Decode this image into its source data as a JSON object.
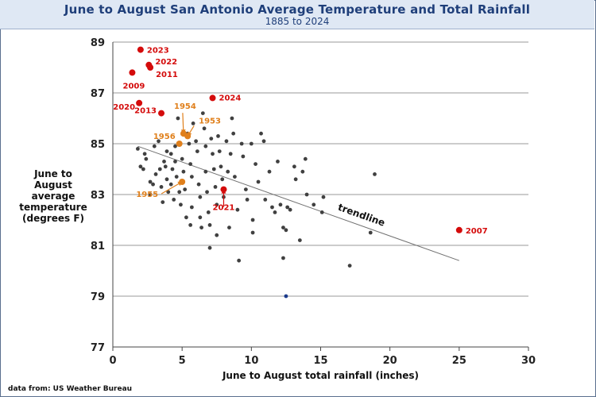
{
  "chart_data": {
    "type": "scatter",
    "title": "June to August San Antonio Average Temperature and Total Rainfall",
    "subtitle": "1885 to 2024",
    "xlabel": "June to August total rainfall (inches)",
    "ylabel": "June to August average temperature (degrees F)",
    "source": "data from:  US Weather Bureau",
    "xlim": [
      0,
      30
    ],
    "ylim": [
      77,
      89
    ],
    "xticks": [
      "0",
      "5",
      "10",
      "15",
      "20",
      "25",
      "30"
    ],
    "yticks": [
      "77",
      "79",
      "81",
      "83",
      "85",
      "87",
      "89"
    ],
    "grid": "horizontal",
    "colors": {
      "points": "#404040",
      "highlight_red": "#d40b0b",
      "highlight_orange": "#e0801c",
      "trendline": "#707070",
      "frame": "#5a6f8e",
      "header_bg": "#dfe8f4",
      "title": "#1f3f7a",
      "special": "#1b3a8c"
    },
    "trendline": {
      "label": "trendline",
      "x": [
        1.8,
        25.0
      ],
      "y": [
        84.9,
        80.4
      ]
    },
    "points": [
      [
        1.8,
        84.8
      ],
      [
        2.0,
        84.1
      ],
      [
        2.3,
        84.6
      ],
      [
        2.4,
        84.4
      ],
      [
        2.2,
        84.0
      ],
      [
        2.7,
        83.5
      ],
      [
        2.9,
        83.4
      ],
      [
        2.7,
        83.0
      ],
      [
        3.0,
        84.9
      ],
      [
        3.3,
        85.1
      ],
      [
        3.4,
        84.0
      ],
      [
        3.1,
        83.8
      ],
      [
        3.5,
        83.3
      ],
      [
        3.6,
        82.7
      ],
      [
        3.8,
        84.1
      ],
      [
        3.9,
        84.7
      ],
      [
        3.7,
        84.3
      ],
      [
        3.9,
        83.6
      ],
      [
        4.0,
        83.1
      ],
      [
        4.2,
        84.6
      ],
      [
        4.3,
        84.0
      ],
      [
        4.2,
        83.4
      ],
      [
        4.4,
        82.8
      ],
      [
        4.5,
        84.9
      ],
      [
        4.5,
        84.3
      ],
      [
        4.6,
        83.7
      ],
      [
        4.7,
        86.0
      ],
      [
        4.8,
        83.1
      ],
      [
        4.9,
        82.6
      ],
      [
        5.0,
        84.4
      ],
      [
        5.1,
        83.9
      ],
      [
        5.2,
        83.2
      ],
      [
        5.3,
        82.1
      ],
      [
        5.4,
        85.4
      ],
      [
        5.5,
        85.0
      ],
      [
        5.6,
        84.2
      ],
      [
        5.7,
        83.7
      ],
      [
        5.7,
        82.5
      ],
      [
        5.6,
        81.8
      ],
      [
        5.8,
        85.8
      ],
      [
        6.0,
        85.1
      ],
      [
        6.1,
        84.7
      ],
      [
        6.2,
        83.4
      ],
      [
        6.3,
        82.9
      ],
      [
        6.3,
        82.1
      ],
      [
        6.4,
        81.7
      ],
      [
        6.5,
        86.2
      ],
      [
        6.6,
        85.6
      ],
      [
        6.7,
        84.9
      ],
      [
        6.7,
        83.9
      ],
      [
        6.8,
        83.1
      ],
      [
        6.9,
        82.3
      ],
      [
        7.0,
        81.8
      ],
      [
        7.0,
        80.9
      ],
      [
        7.1,
        85.2
      ],
      [
        7.2,
        84.6
      ],
      [
        7.3,
        84.0
      ],
      [
        7.4,
        83.3
      ],
      [
        7.5,
        82.6
      ],
      [
        7.5,
        81.4
      ],
      [
        7.6,
        85.3
      ],
      [
        7.7,
        84.7
      ],
      [
        7.8,
        84.1
      ],
      [
        7.9,
        83.6
      ],
      [
        8.0,
        82.9
      ],
      [
        8.2,
        85.1
      ],
      [
        8.3,
        83.9
      ],
      [
        8.4,
        81.7
      ],
      [
        8.5,
        84.6
      ],
      [
        8.6,
        86.0
      ],
      [
        8.7,
        85.4
      ],
      [
        8.8,
        83.7
      ],
      [
        9.0,
        82.4
      ],
      [
        9.1,
        80.4
      ],
      [
        9.3,
        85.0
      ],
      [
        9.4,
        84.5
      ],
      [
        9.6,
        83.2
      ],
      [
        9.7,
        82.8
      ],
      [
        10.0,
        85.0
      ],
      [
        10.1,
        82.0
      ],
      [
        10.1,
        81.5
      ],
      [
        10.3,
        84.2
      ],
      [
        10.5,
        83.5
      ],
      [
        10.7,
        85.4
      ],
      [
        10.9,
        85.1
      ],
      [
        11.0,
        82.8
      ],
      [
        11.3,
        83.9
      ],
      [
        11.5,
        82.5
      ],
      [
        11.7,
        82.3
      ],
      [
        11.9,
        84.3
      ],
      [
        12.1,
        82.6
      ],
      [
        12.3,
        81.7
      ],
      [
        12.3,
        80.5
      ],
      [
        12.5,
        81.6
      ],
      [
        12.6,
        82.5
      ],
      [
        12.8,
        82.4
      ],
      [
        13.1,
        84.1
      ],
      [
        13.2,
        83.6
      ],
      [
        13.5,
        81.2
      ],
      [
        13.7,
        83.9
      ],
      [
        13.9,
        84.4
      ],
      [
        14.0,
        83.0
      ],
      [
        14.5,
        82.6
      ],
      [
        15.1,
        82.3
      ],
      [
        15.2,
        82.9
      ],
      [
        17.1,
        80.2
      ],
      [
        18.6,
        81.5
      ],
      [
        18.9,
        83.8
      ]
    ],
    "special_point": {
      "x": 12.5,
      "y": 79.0
    },
    "highlighted": [
      {
        "year": "2023",
        "x": 2.0,
        "y": 88.7,
        "color": "red"
      },
      {
        "year": "2022",
        "x": 2.6,
        "y": 88.1,
        "color": "red"
      },
      {
        "year": "2011",
        "x": 2.7,
        "y": 88.0,
        "color": "red"
      },
      {
        "year": "2009",
        "x": 1.4,
        "y": 87.8,
        "color": "red"
      },
      {
        "year": "2020",
        "x": 1.9,
        "y": 86.6,
        "color": "red"
      },
      {
        "year": "2013",
        "x": 3.5,
        "y": 86.2,
        "color": "red"
      },
      {
        "year": "2024",
        "x": 7.2,
        "y": 86.8,
        "color": "red"
      },
      {
        "year": "2021",
        "x": 8.0,
        "y": 83.2,
        "color": "red"
      },
      {
        "year": "2007",
        "x": 25.0,
        "y": 81.6,
        "color": "red"
      },
      {
        "year": "1954",
        "x": 5.1,
        "y": 85.4,
        "color": "orange"
      },
      {
        "year": "1953",
        "x": 5.4,
        "y": 85.3,
        "color": "orange"
      },
      {
        "year": "1956",
        "x": 4.8,
        "y": 85.0,
        "color": "orange"
      },
      {
        "year": "1955",
        "x": 5.0,
        "y": 83.5,
        "color": "orange"
      }
    ]
  }
}
